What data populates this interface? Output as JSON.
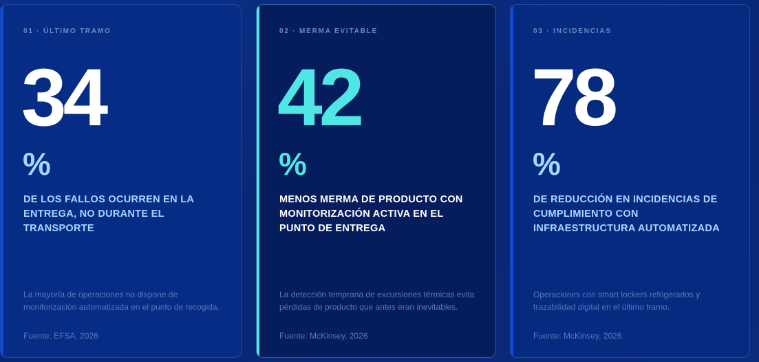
{
  "cards": [
    {
      "eyebrow": "01 · ÚLTIMO TRAMO",
      "value": "34",
      "unit": "%",
      "headline": "DE LOS FALLOS OCURREN EN LA ENTREGA, NO DURANTE EL TRANSPORTE",
      "description": "La mayoría de operaciones no dispone de monitorización automatizada en el punto de recogida.",
      "source": "Fuente: EFSA, 2026"
    },
    {
      "eyebrow": "02 · MERMA EVITABLE",
      "value": "42",
      "unit": "%",
      "headline": "MENOS MERMA DE PRODUCTO CON MONITORIZACIÓN ACTIVA EN EL PUNTO DE ENTREGA",
      "description": "La detección temprana de excursiones térmicas evita pérdidas de producto que antes eran inevitables.",
      "source": "Fuente: McKinsey, 2026"
    },
    {
      "eyebrow": "03 · INCIDENCIAS",
      "value": "78",
      "unit": "%",
      "headline": "DE REDUCCIÓN EN INCIDENCIAS DE CUMPLIMIENTO CON INFRAESTRUCTURA AUTOMATIZADA",
      "description": "Operaciones con smart lockers refrigerados y trazabilidad digital en el último tramo.",
      "source": "Fuente: McKinsey, 2026"
    }
  ],
  "colors": {
    "background": "#082673",
    "accent_blue": "#0d4be0",
    "accent_cyan": "#4fe6e4",
    "headline_light_blue": "#a6d8ff",
    "muted_text": "#5d77b7"
  }
}
